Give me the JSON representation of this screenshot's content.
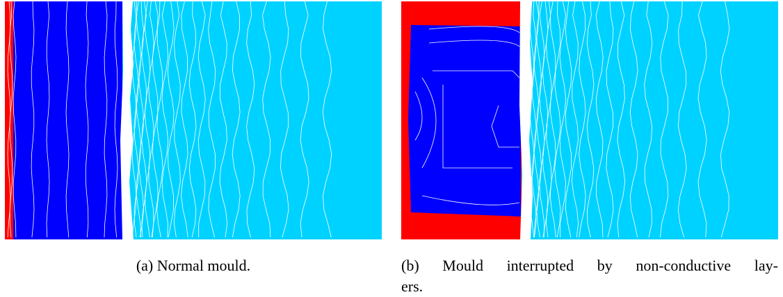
{
  "figure": {
    "subfigures": [
      {
        "caption": "(a) Normal mould."
      },
      {
        "caption_lines": [
          "(b) Mould interrupted by non-conductive lay-",
          "ers."
        ]
      }
    ]
  }
}
